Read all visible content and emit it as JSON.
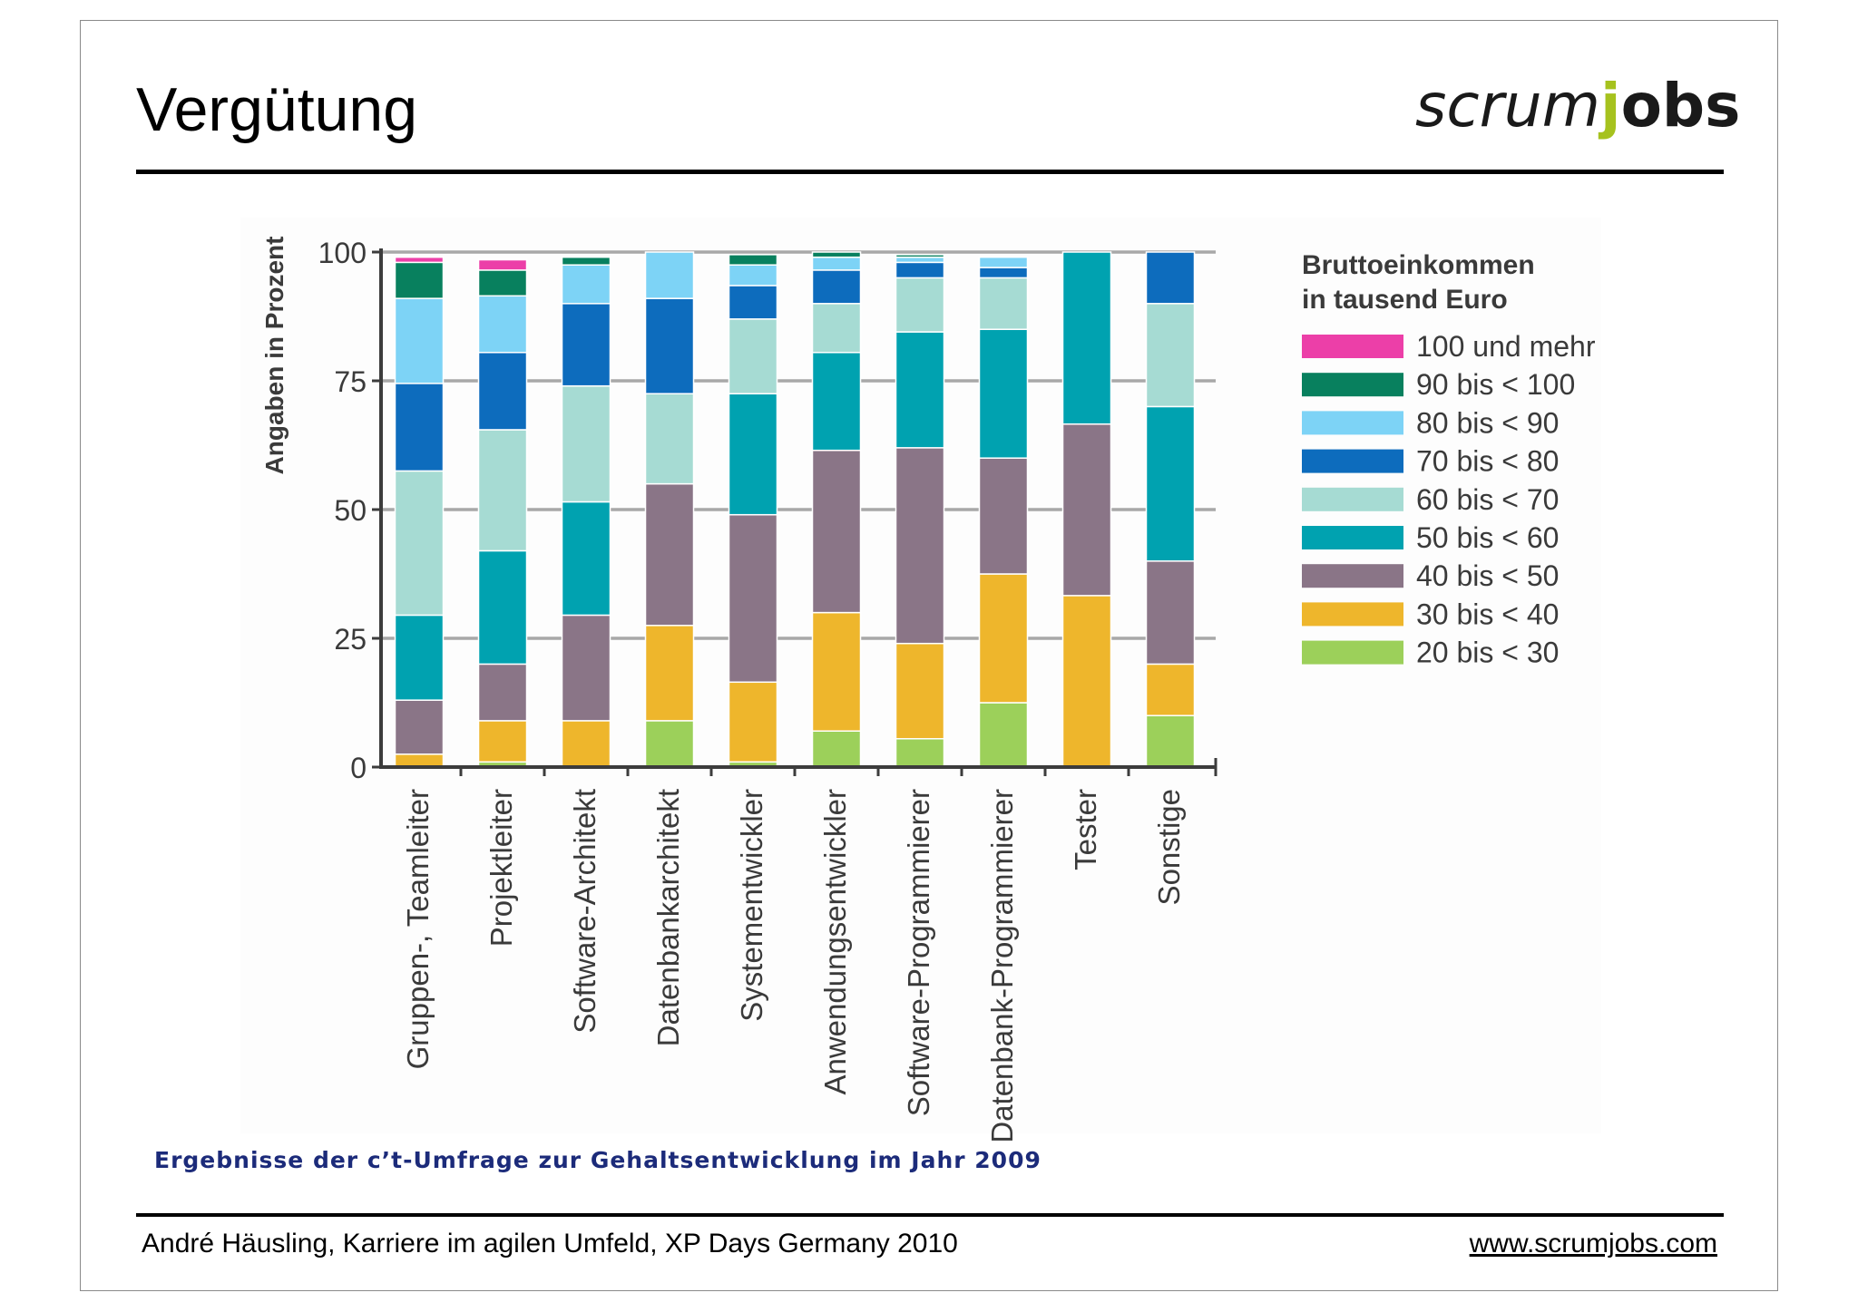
{
  "slide": {
    "title": "Vergütung",
    "logo": {
      "part1": "scrum",
      "part2": "j",
      "part3": "obs"
    },
    "caption": "Ergebnisse der c’t-Umfrage zur Gehaltsentwicklung im Jahr 2009",
    "footer_left": "André Häusling, Karriere im agilen Umfeld, XP Days Germany 2010",
    "footer_right": "www.scrumjobs.com"
  },
  "chart_data": {
    "type": "bar",
    "stacked": true,
    "ylabel": "Angaben in Prozent",
    "ylim": [
      0,
      100
    ],
    "yticks": [
      0,
      25,
      50,
      75,
      100
    ],
    "grid": true,
    "legend_title": [
      "Bruttoeinkommen",
      "in tausend Euro"
    ],
    "legend_position": "right",
    "categories": [
      "Gruppen-, Teamleiter",
      "Projektleiter",
      "Software-Architekt",
      "Datenbankarchitekt",
      "Systementwickler",
      "Anwendungsentwickler",
      "Software-Programmierer",
      "Datenbank-Programmierer",
      "Tester",
      "Sonstige"
    ],
    "series": [
      {
        "name": "20 bis < 30",
        "color": "#9cd05a",
        "values": [
          0,
          1,
          0,
          9,
          1,
          7,
          5.5,
          12.5,
          0,
          10
        ]
      },
      {
        "name": "30 bis < 40",
        "color": "#eeb62c",
        "values": [
          2.5,
          8,
          9,
          18.5,
          15.5,
          23,
          18.5,
          25,
          33.3,
          10
        ]
      },
      {
        "name": "40 bis < 50",
        "color": "#8a7587",
        "values": [
          10.5,
          11,
          20.5,
          27.5,
          32.5,
          31.5,
          38,
          22.5,
          33.3,
          20
        ]
      },
      {
        "name": "50 bis < 60",
        "color": "#00a2b0",
        "values": [
          16.5,
          22,
          22,
          0,
          23.5,
          19,
          22.5,
          25,
          33.4,
          30
        ]
      },
      {
        "name": "60 bis < 70",
        "color": "#a6dbd3",
        "values": [
          28,
          23.5,
          22.5,
          17.5,
          14.5,
          9.5,
          10.5,
          10,
          0,
          20
        ]
      },
      {
        "name": "70 bis < 80",
        "color": "#0d6cbd",
        "values": [
          17,
          15,
          16,
          18.5,
          6.5,
          6.5,
          3,
          2,
          0,
          10
        ]
      },
      {
        "name": "80 bis < 90",
        "color": "#7dd3f6",
        "values": [
          16.5,
          11,
          7.5,
          9,
          4,
          2.5,
          1,
          2,
          0,
          0
        ]
      },
      {
        "name": "90 bis < 100",
        "color": "#08805e",
        "values": [
          7,
          5,
          1.5,
          0,
          2,
          1,
          0.5,
          0,
          0,
          0
        ]
      },
      {
        "name": "100 und mehr",
        "color": "#ec3fa8",
        "values": [
          1,
          2,
          0,
          0,
          0,
          0,
          0,
          0,
          0,
          0
        ]
      }
    ]
  }
}
